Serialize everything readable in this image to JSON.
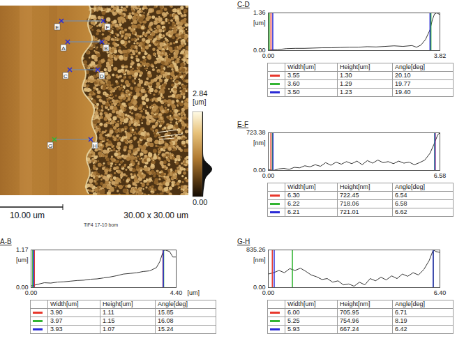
{
  "image": {
    "scan": {
      "width": 30,
      "height": 30,
      "label": "30.00 x 30.00 um"
    },
    "scale_bar": {
      "length": 10,
      "label": "10.00 um"
    },
    "caption": "TiF4 17-10 bom",
    "colorbar": {
      "range": [
        0,
        2.84
      ],
      "ticks": [
        {
          "value": 0,
          "label": "0.00"
        },
        2.84
      ],
      "unit": "[um]"
    },
    "markers": [
      {
        "start": "E",
        "end": "F"
      },
      {
        "start": "A",
        "end": "B"
      },
      {
        "start": "C",
        "end": "D"
      },
      {
        "start": "G",
        "end": "H"
      }
    ]
  },
  "chart_data": [
    {
      "type": "line",
      "title": "C-D",
      "color": "#333333",
      "x": [
        0,
        0.2,
        0.4,
        0.6,
        0.8,
        1.0,
        1.2,
        1.4,
        1.6,
        1.8,
        2.0,
        2.2,
        2.4,
        2.6,
        2.8,
        3.0,
        3.2,
        3.3,
        3.4,
        3.5,
        3.6,
        3.65,
        3.7,
        3.75,
        3.82
      ],
      "values": [
        0.02,
        0.03,
        0.07,
        0.08,
        0.08,
        0.09,
        0.1,
        0.1,
        0.11,
        0.12,
        0.12,
        0.14,
        0.13,
        0.15,
        0.17,
        0.15,
        0.18,
        0.12,
        0.2,
        0.4,
        0.75,
        1.1,
        1.32,
        1.36,
        1.3
      ],
      "xlim": [
        0,
        3.82
      ],
      "xticks": [
        {
          "value": 0,
          "label": "0.00"
        },
        3.82
      ],
      "ylim": [
        0,
        1.36
      ],
      "yticks": [
        {
          "value": 0,
          "label": "0.00"
        },
        1.36
      ],
      "y_unit": "[um]",
      "cursors": [
        {
          "color": "#e8372c",
          "x": [
            0.06,
            3.61
          ]
        },
        {
          "color": "#33b533",
          "x": [
            0.02,
            3.62
          ]
        },
        {
          "color": "#2a2ad6",
          "x": [
            0.1,
            3.6
          ]
        }
      ],
      "table": {
        "columns": [
          "Width[um]",
          "Height[um]",
          "Angle[deg]"
        ],
        "rows": [
          {
            "color": "#e8372c",
            "cells": [
              "3.55",
              "1.30",
              "20.10"
            ]
          },
          {
            "color": "#33b533",
            "cells": [
              "3.60",
              "1.29",
              "19.77"
            ]
          },
          {
            "color": "#2a2ad6",
            "cells": [
              "3.50",
              "1.23",
              "19.40"
            ]
          }
        ]
      }
    },
    {
      "type": "line",
      "title": "E-F",
      "color": "#333333",
      "x": [
        0,
        0.2,
        0.4,
        0.6,
        0.8,
        1.0,
        1.2,
        1.4,
        1.6,
        1.8,
        2.0,
        2.2,
        2.4,
        2.6,
        2.8,
        3.0,
        3.2,
        3.4,
        3.6,
        3.8,
        4.0,
        4.2,
        4.4,
        4.6,
        4.8,
        5.0,
        5.2,
        5.4,
        5.6,
        5.8,
        6.0,
        6.2,
        6.35,
        6.5,
        6.58
      ],
      "values": [
        20,
        0,
        30,
        40,
        20,
        60,
        50,
        90,
        70,
        110,
        80,
        150,
        100,
        160,
        120,
        170,
        130,
        180,
        110,
        190,
        140,
        200,
        150,
        170,
        130,
        180,
        140,
        160,
        110,
        150,
        200,
        330,
        500,
        690,
        720
      ],
      "xlim": [
        0,
        6.58
      ],
      "xticks": [
        {
          "value": 0,
          "label": "0.00"
        },
        6.58
      ],
      "ylim": [
        0,
        723.38
      ],
      "yticks": [
        {
          "value": 0,
          "label": "0.00"
        },
        723.38
      ],
      "y_unit": "[nm]",
      "cursors": [
        {
          "color": "#e8372c",
          "x": [
            0.1,
            6.4
          ]
        },
        {
          "color": "#33b533",
          "x": [
            0.16,
            6.38
          ]
        },
        {
          "color": "#2a2ad6",
          "x": [
            0.18,
            6.39
          ]
        }
      ],
      "table": {
        "columns": [
          "Width[um]",
          "Height[nm]",
          "Angle[deg]"
        ],
        "rows": [
          {
            "color": "#e8372c",
            "cells": [
              "6.30",
              "722.45",
              "6.54"
            ]
          },
          {
            "color": "#33b533",
            "cells": [
              "6.22",
              "718.06",
              "6.58"
            ]
          },
          {
            "color": "#2a2ad6",
            "cells": [
              "6.21",
              "721.01",
              "6.62"
            ]
          }
        ]
      }
    },
    {
      "type": "line",
      "title": "G-H",
      "color": "#333333",
      "x": [
        0,
        0.2,
        0.4,
        0.6,
        0.8,
        1.0,
        1.2,
        1.4,
        1.6,
        1.8,
        2.0,
        2.2,
        2.4,
        2.6,
        2.8,
        3.0,
        3.2,
        3.4,
        3.6,
        3.8,
        4.0,
        4.2,
        4.4,
        4.6,
        4.8,
        5.0,
        5.2,
        5.4,
        5.6,
        5.8,
        6.0,
        6.15,
        6.25,
        6.4
      ],
      "values": [
        300,
        330,
        380,
        330,
        420,
        380,
        430,
        360,
        280,
        240,
        180,
        200,
        120,
        150,
        60,
        80,
        30,
        120,
        60,
        200,
        150,
        230,
        170,
        260,
        200,
        300,
        250,
        330,
        280,
        400,
        600,
        835,
        800,
        780
      ],
      "xlim": [
        0,
        6.4
      ],
      "xticks": [
        {
          "value": 0,
          "label": "0.00"
        },
        {
          "value": 6.4,
          "label": "6.40"
        }
      ],
      "ylim": [
        0,
        835.26
      ],
      "yticks": [
        {
          "value": 0,
          "label": "0.00"
        },
        835.26
      ],
      "y_unit": "[nm]",
      "cursors": [
        {
          "color": "#e8372c",
          "x": [
            0.15,
            6.15
          ]
        },
        {
          "color": "#33b533",
          "x": [
            0.9,
            6.15
          ]
        },
        {
          "color": "#2a2ad6",
          "x": [
            0.22,
            6.15
          ]
        }
      ],
      "table": {
        "columns": [
          "Width[um]",
          "Height[nm]",
          "Angle[deg]"
        ],
        "rows": [
          {
            "color": "#e8372c",
            "cells": [
              "6.00",
              "705.95",
              "6.71"
            ]
          },
          {
            "color": "#33b533",
            "cells": [
              "5.25",
              "754.96",
              "8.19"
            ]
          },
          {
            "color": "#2a2ad6",
            "cells": [
              "5.93",
              "667.24",
              "6.42"
            ]
          }
        ]
      }
    },
    {
      "type": "line",
      "title": "A-B",
      "color": "#333333",
      "x": [
        0,
        0.2,
        0.4,
        0.6,
        0.8,
        1.0,
        1.2,
        1.4,
        1.6,
        1.8,
        2.0,
        2.2,
        2.4,
        2.6,
        2.8,
        3.0,
        3.2,
        3.4,
        3.6,
        3.8,
        3.9,
        4.0,
        4.05,
        4.2,
        4.3,
        4.4
      ],
      "values": [
        0.05,
        0.1,
        0.15,
        0.14,
        0.17,
        0.18,
        0.2,
        0.22,
        0.23,
        0.26,
        0.27,
        0.3,
        0.33,
        0.37,
        0.42,
        0.44,
        0.46,
        0.5,
        0.52,
        0.62,
        0.8,
        1.1,
        1.17,
        1.12,
        0.95,
        0.95
      ],
      "xlim": [
        0,
        4.4
      ],
      "xticks": [
        {
          "value": 0,
          "label": "0.00"
        },
        {
          "value": 4.4,
          "label": "4.40"
        }
      ],
      "ylim": [
        0,
        1.17
      ],
      "yticks": [
        {
          "value": 0,
          "label": "0.00"
        },
        1.17
      ],
      "y_unit": "[um]",
      "x_unit": "[um]",
      "cursors": [
        {
          "color": "#e8372c",
          "x": [
            0.1,
            4.0
          ]
        },
        {
          "color": "#33b533",
          "x": [
            0.05,
            4.02
          ]
        },
        {
          "color": "#2a2ad6",
          "x": [
            0.08,
            4.01
          ]
        }
      ],
      "table": {
        "columns": [
          "Width[um]",
          "Height[um]",
          "Angle[deg]"
        ],
        "rows": [
          {
            "color": "#e8372c",
            "cells": [
              "3.90",
              "1.11",
              "15.85"
            ]
          },
          {
            "color": "#33b533",
            "cells": [
              "3.97",
              "1.15",
              "16.08"
            ]
          },
          {
            "color": "#2a2ad6",
            "cells": [
              "3.93",
              "1.07",
              "15.24"
            ]
          }
        ]
      }
    }
  ]
}
